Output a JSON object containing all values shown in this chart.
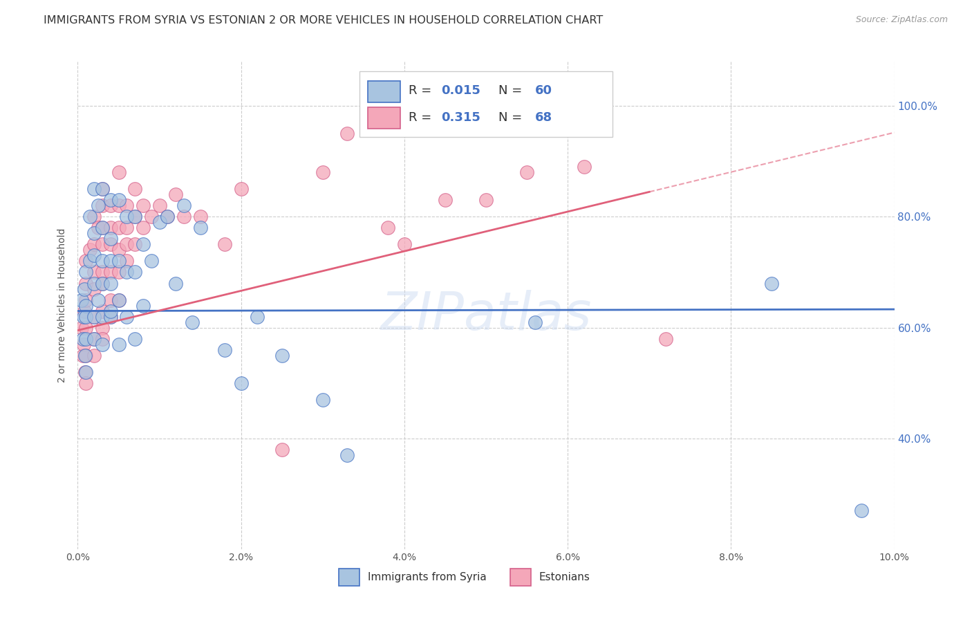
{
  "title": "IMMIGRANTS FROM SYRIA VS ESTONIAN 2 OR MORE VEHICLES IN HOUSEHOLD CORRELATION CHART",
  "source": "Source: ZipAtlas.com",
  "ylabel": "2 or more Vehicles in Household",
  "xlim": [
    0.0,
    0.1
  ],
  "ylim": [
    0.2,
    1.08
  ],
  "watermark": "ZIPatlas",
  "color_syria": "#a8c4e0",
  "color_estonia": "#f4a7b9",
  "edge_color_syria": "#4472c4",
  "edge_color_estonia": "#d4608a",
  "line_color_syria": "#4472c4",
  "line_color_estonia": "#e0607a",
  "label_syria": "Immigrants from Syria",
  "label_estonia": "Estonians",
  "R_syria": 0.015,
  "N_syria": 60,
  "R_estonia": 0.315,
  "N_estonia": 68,
  "background_color": "#ffffff",
  "syria_x": [
    0.0005,
    0.0006,
    0.0007,
    0.0008,
    0.0009,
    0.001,
    0.001,
    0.001,
    0.001,
    0.001,
    0.0015,
    0.0015,
    0.002,
    0.002,
    0.002,
    0.002,
    0.002,
    0.002,
    0.0025,
    0.0025,
    0.003,
    0.003,
    0.003,
    0.003,
    0.003,
    0.003,
    0.004,
    0.004,
    0.004,
    0.004,
    0.004,
    0.004,
    0.005,
    0.005,
    0.005,
    0.005,
    0.006,
    0.006,
    0.006,
    0.007,
    0.007,
    0.007,
    0.008,
    0.008,
    0.009,
    0.01,
    0.011,
    0.012,
    0.013,
    0.014,
    0.015,
    0.018,
    0.02,
    0.022,
    0.025,
    0.03,
    0.033,
    0.056,
    0.085,
    0.096
  ],
  "syria_y": [
    0.65,
    0.58,
    0.62,
    0.67,
    0.55,
    0.7,
    0.64,
    0.58,
    0.52,
    0.62,
    0.8,
    0.72,
    0.85,
    0.77,
    0.68,
    0.62,
    0.73,
    0.58,
    0.82,
    0.65,
    0.85,
    0.78,
    0.72,
    0.68,
    0.62,
    0.57,
    0.83,
    0.76,
    0.68,
    0.62,
    0.72,
    0.63,
    0.83,
    0.72,
    0.65,
    0.57,
    0.8,
    0.7,
    0.62,
    0.8,
    0.7,
    0.58,
    0.75,
    0.64,
    0.72,
    0.79,
    0.8,
    0.68,
    0.82,
    0.61,
    0.78,
    0.56,
    0.5,
    0.62,
    0.55,
    0.47,
    0.37,
    0.61,
    0.68,
    0.27
  ],
  "estonia_x": [
    0.0005,
    0.0006,
    0.0007,
    0.0008,
    0.0009,
    0.001,
    0.001,
    0.001,
    0.001,
    0.001,
    0.001,
    0.0015,
    0.002,
    0.002,
    0.002,
    0.002,
    0.002,
    0.002,
    0.002,
    0.0025,
    0.003,
    0.003,
    0.003,
    0.003,
    0.003,
    0.003,
    0.003,
    0.003,
    0.003,
    0.004,
    0.004,
    0.004,
    0.004,
    0.004,
    0.004,
    0.005,
    0.005,
    0.005,
    0.005,
    0.005,
    0.005,
    0.006,
    0.006,
    0.006,
    0.006,
    0.007,
    0.007,
    0.007,
    0.008,
    0.008,
    0.009,
    0.01,
    0.011,
    0.012,
    0.013,
    0.015,
    0.018,
    0.02,
    0.025,
    0.03,
    0.033,
    0.038,
    0.04,
    0.045,
    0.05,
    0.055,
    0.062,
    0.072
  ],
  "estonia_y": [
    0.6,
    0.55,
    0.57,
    0.63,
    0.52,
    0.72,
    0.68,
    0.65,
    0.6,
    0.55,
    0.5,
    0.74,
    0.8,
    0.75,
    0.7,
    0.67,
    0.62,
    0.58,
    0.55,
    0.78,
    0.85,
    0.82,
    0.78,
    0.75,
    0.7,
    0.68,
    0.63,
    0.6,
    0.58,
    0.82,
    0.78,
    0.75,
    0.7,
    0.65,
    0.62,
    0.88,
    0.82,
    0.78,
    0.74,
    0.7,
    0.65,
    0.82,
    0.78,
    0.75,
    0.72,
    0.85,
    0.8,
    0.75,
    0.82,
    0.78,
    0.8,
    0.82,
    0.8,
    0.84,
    0.8,
    0.8,
    0.75,
    0.85,
    0.38,
    0.88,
    0.95,
    0.78,
    0.75,
    0.83,
    0.83,
    0.88,
    0.89,
    0.58
  ]
}
